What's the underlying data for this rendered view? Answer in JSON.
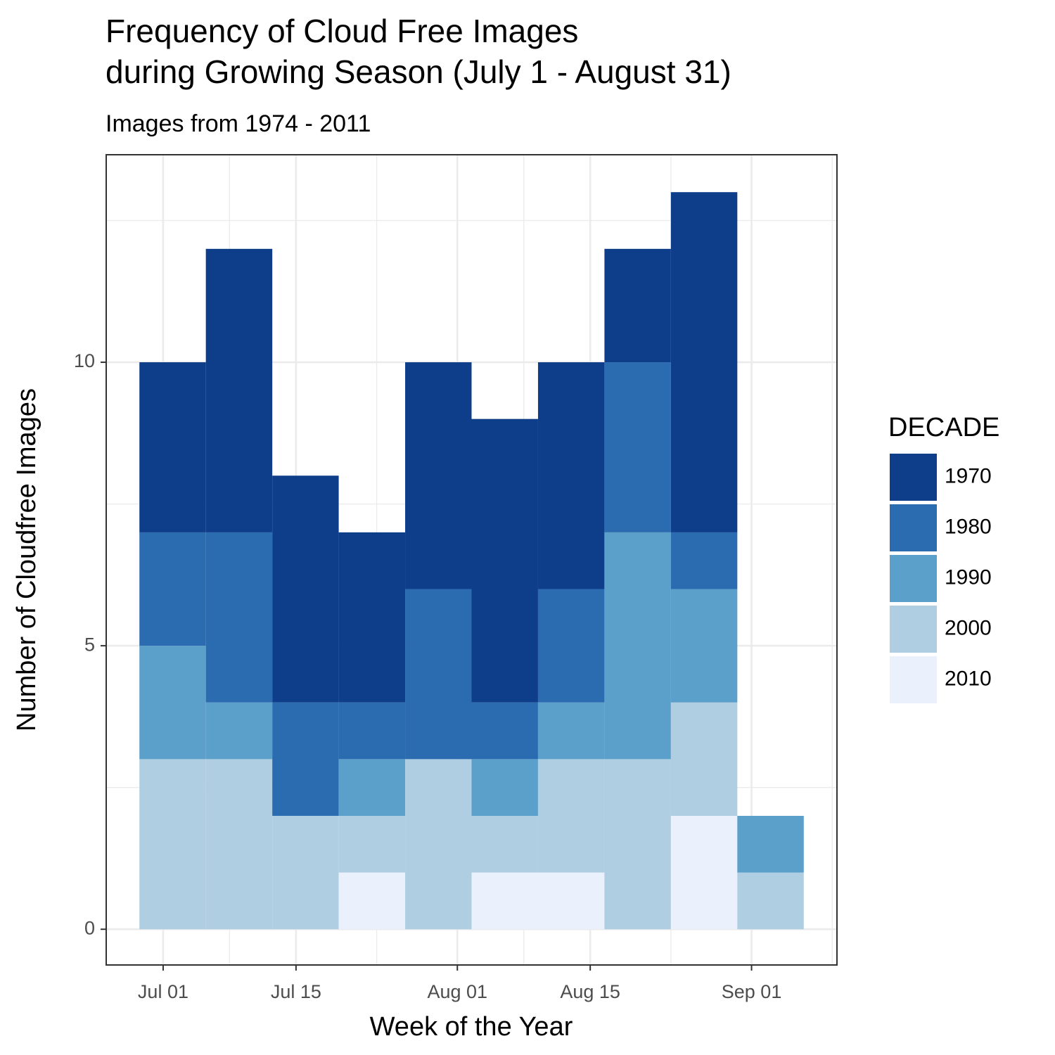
{
  "chart_data": {
    "type": "bar",
    "stacked": true,
    "title": [
      "Frequency of Cloud Free Images",
      "during Growing Season (July 1 - August 31)"
    ],
    "subtitle": "Images from 1974 - 2011",
    "x_label": "Week of the Year",
    "y_label": "Number of Cloudfree Images",
    "x": [
      "Jul 02",
      "Jul 09",
      "Jul 16",
      "Jul 23",
      "Jul 30",
      "Aug 06",
      "Aug 13",
      "Aug 20",
      "Aug 27",
      "Sep 03"
    ],
    "xlim": [
      "Jun 25",
      "Sep 10"
    ],
    "xticks": [
      "Jul 01",
      "Jul 15",
      "Aug 01",
      "Aug 15",
      "Sep 01"
    ],
    "ylim": [
      -0.63,
      13.66
    ],
    "yticks": [
      0,
      5,
      10
    ],
    "grid": true,
    "legend_title": "DECADE",
    "legend_position": "right",
    "series": [
      {
        "name": "1970",
        "color": "#0e3d8a",
        "values": [
          3,
          5,
          4,
          3,
          4,
          5,
          4,
          2,
          6,
          0
        ]
      },
      {
        "name": "1980",
        "color": "#2b6cb0",
        "values": [
          2,
          3,
          2,
          1,
          3,
          1,
          2,
          3,
          1,
          0
        ]
      },
      {
        "name": "1990",
        "color": "#5b9fcb",
        "values": [
          2,
          1,
          0,
          1,
          0,
          1,
          1,
          4,
          2,
          1
        ]
      },
      {
        "name": "2000",
        "color": "#b0cee2",
        "values": [
          3,
          3,
          2,
          1,
          3,
          1,
          2,
          3,
          2,
          1
        ]
      },
      {
        "name": "2010",
        "color": "#eaf0fc",
        "values": [
          0,
          0,
          0,
          1,
          0,
          1,
          1,
          0,
          2,
          0
        ]
      }
    ]
  }
}
